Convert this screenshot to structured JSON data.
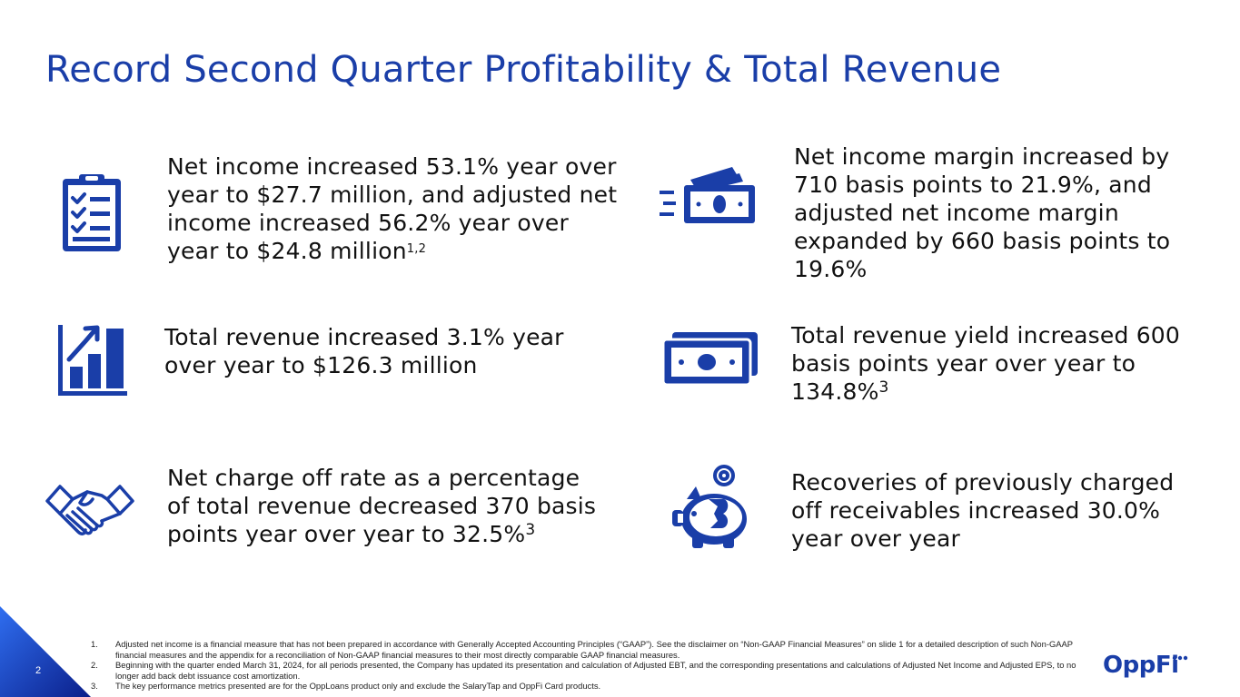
{
  "slide": {
    "title": "Record Second Quarter Profitability & Total Revenue",
    "page_number": "2",
    "logo_text": "OppFi"
  },
  "stats": [
    {
      "icon": "clipboard-checklist-icon",
      "text": "Net income increased 53.1% year over year to $27.7 million, and adjusted net income increased 56.2% year over year to $24.8 million",
      "sup": "1,2"
    },
    {
      "icon": "cash-bills-icon",
      "text": "Net income margin increased by 710 basis points to 21.9%, and adjusted net income margin expanded by 660 basis points to 19.6%",
      "sup": ""
    },
    {
      "icon": "bar-chart-up-icon",
      "text": "Total revenue increased 3.1% year over year to $126.3 million",
      "sup": ""
    },
    {
      "icon": "banknote-icon",
      "text": "Total revenue yield increased 600 basis points year over year to 134.8%",
      "sup": "3"
    },
    {
      "icon": "handshake-icon",
      "text": "Net charge off rate as a percentage of total revenue decreased 370 basis points year over year to 32.5%",
      "sup": "3"
    },
    {
      "icon": "piggy-bank-coin-icon",
      "text": "Recoveries of previously charged off receivables increased 30.0% year over year",
      "sup": ""
    }
  ],
  "footnotes": [
    {
      "num": "1.",
      "text": "Adjusted net income is a financial measure that has not been prepared in accordance with Generally Accepted Accounting Principles (“GAAP”). See the disclaimer on “Non-GAAP Financial Measures” on slide 1 for a detailed description of such Non-GAAP financial measures and the appendix for a reconciliation of Non-GAAP financial measures to their most directly comparable GAAP financial measures."
    },
    {
      "num": "2.",
      "text": "Beginning with the quarter ended March 31, 2024, for all periods presented, the Company has updated its presentation and calculation of Adjusted EBT, and the corresponding presentations and calculations of Adjusted Net Income and Adjusted EPS, to no longer add back debt issuance cost amortization."
    },
    {
      "num": "3.",
      "text": "The key performance metrics presented are for the OppLoans product only and exclude the SalaryTap and OppFi Card products."
    }
  ],
  "colors": {
    "brand_blue": "#1a3ea8",
    "corner_gradient_start": "#2f6ef0",
    "corner_gradient_end": "#0b1f8a"
  }
}
